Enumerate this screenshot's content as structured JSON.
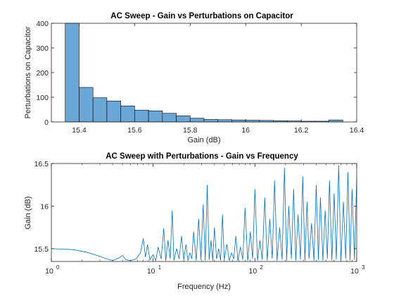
{
  "chart_data": [
    {
      "type": "bar",
      "title": "AC Sweep - Gain vs Perturbations on Capacitor",
      "xlabel": "Gain (dB)",
      "ylabel": "Perturbations on Capacitor",
      "xlim": [
        15.3,
        16.4
      ],
      "ylim": [
        0,
        400
      ],
      "xticks": [
        "15.4",
        "15.6",
        "15.8",
        "16",
        "16.2",
        "16.4"
      ],
      "yticks": [
        "0",
        "100",
        "200",
        "300",
        "400"
      ],
      "bar_color": "#6aa6d6",
      "bin_edges": [
        15.35,
        15.4,
        15.45,
        15.5,
        15.55,
        15.6,
        15.65,
        15.7,
        15.75,
        15.8,
        15.85,
        15.9,
        15.95,
        16.0,
        16.05,
        16.1,
        16.15,
        16.2,
        16.25,
        16.3,
        16.35
      ],
      "values": [
        400,
        140,
        98,
        85,
        65,
        48,
        45,
        35,
        25,
        15,
        10,
        9,
        8,
        7,
        6,
        5,
        4,
        3,
        3,
        8
      ]
    },
    {
      "type": "line",
      "title": "AC Sweep with Perturbations - Gain vs Frequency",
      "xlabel": "Frequency (Hz)",
      "ylabel": "Gain (dB)",
      "xscale": "log",
      "xlim": [
        1,
        1000
      ],
      "ylim": [
        15.35,
        16.5
      ],
      "xticks": [
        {
          "base": "10",
          "exp": "0"
        },
        {
          "base": "10",
          "exp": "1"
        },
        {
          "base": "10",
          "exp": "2"
        },
        {
          "base": "10",
          "exp": "3"
        }
      ],
      "yticks": [
        "15.5",
        "16",
        "16.5"
      ],
      "line_color": "#0072bd",
      "x": [
        1,
        1.6,
        2.2,
        3.0,
        3.5,
        4.0,
        4.6,
        5.0,
        5.4,
        6.0,
        6.8,
        7.5,
        8.0,
        8.4,
        8.8,
        9.3,
        10.0,
        10.6,
        11.2,
        12.0,
        12.7,
        13.3,
        14.0,
        14.7,
        15.4,
        16.0,
        17.0,
        18.0,
        19.0,
        20.0,
        21.0,
        22.0,
        23.0,
        24.0,
        25.0,
        26.5,
        28.0,
        29.5,
        31.0,
        32.5,
        34.0,
        35.5,
        37.0,
        38.5,
        40.0,
        42.0,
        44.0,
        46.0,
        48.0,
        50.0,
        53.0,
        56.0,
        59.0,
        62.0,
        65.0,
        68.0,
        72.0,
        76.0,
        80.0,
        85.0,
        90.0,
        95.0,
        100,
        106,
        112,
        118,
        125,
        132,
        140,
        148,
        156,
        165,
        175,
        185,
        195,
        205,
        215,
        228,
        240,
        252,
        265,
        280,
        295,
        310,
        325,
        340,
        360,
        380,
        400,
        420,
        440,
        465,
        490,
        515,
        540,
        570,
        600,
        630,
        665,
        700,
        740,
        780,
        820,
        860,
        900,
        950,
        1000
      ],
      "y": [
        15.5,
        15.49,
        15.46,
        15.41,
        15.38,
        15.36,
        15.39,
        15.42,
        15.37,
        15.36,
        15.38,
        15.45,
        15.62,
        15.4,
        15.55,
        15.37,
        15.43,
        15.36,
        15.52,
        15.38,
        15.74,
        15.36,
        15.6,
        15.38,
        15.95,
        15.36,
        15.5,
        15.38,
        15.65,
        15.37,
        15.55,
        15.36,
        15.45,
        15.38,
        15.7,
        15.36,
        15.85,
        15.37,
        16.02,
        15.36,
        16.25,
        15.37,
        15.6,
        15.36,
        15.75,
        15.38,
        15.5,
        15.36,
        15.9,
        15.37,
        15.55,
        15.36,
        15.45,
        15.38,
        15.65,
        15.36,
        15.52,
        15.37,
        15.98,
        15.36,
        15.7,
        15.38,
        16.2,
        15.36,
        15.6,
        15.37,
        16.1,
        15.36,
        15.85,
        15.38,
        16.3,
        15.36,
        15.75,
        15.37,
        16.45,
        15.36,
        16.0,
        15.38,
        16.2,
        15.36,
        15.9,
        15.37,
        16.35,
        15.36,
        16.05,
        15.38,
        15.8,
        15.36,
        16.25,
        15.37,
        16.1,
        15.36,
        15.95,
        15.38,
        16.3,
        15.36,
        16.15,
        15.37,
        16.48,
        15.36,
        16.05,
        15.38,
        16.4,
        15.36,
        16.2,
        15.37,
        16.33
      ]
    }
  ]
}
